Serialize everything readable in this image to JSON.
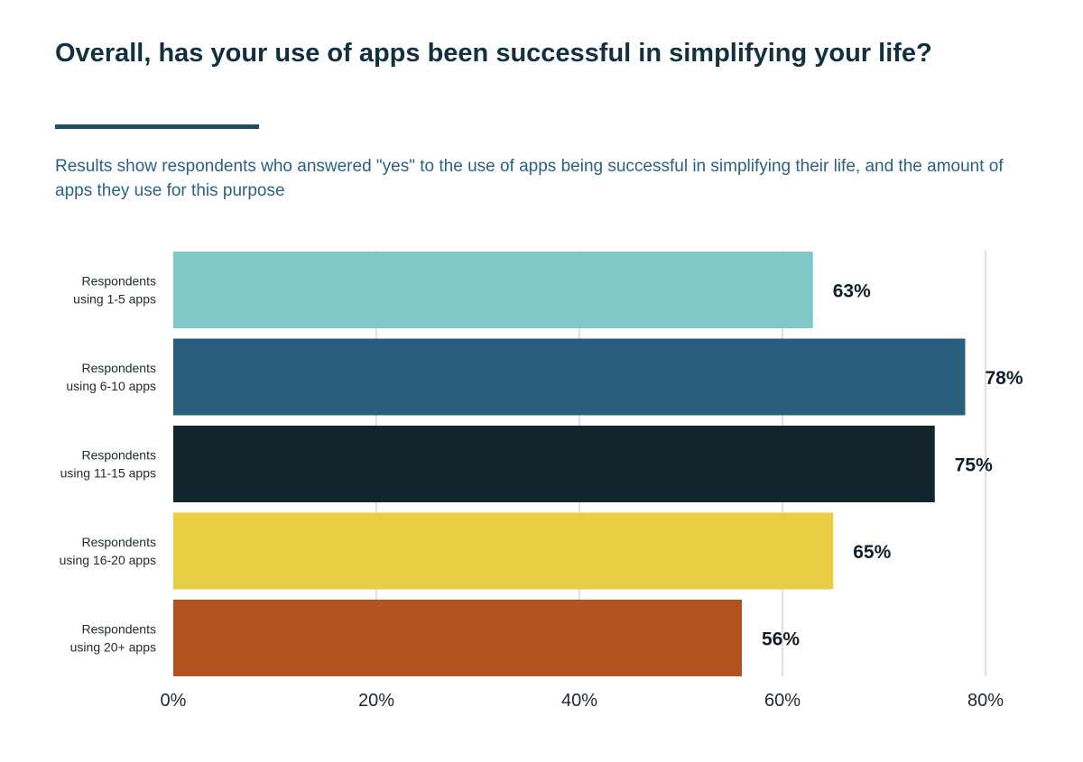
{
  "header": {
    "title": "Overall, has your use of apps been successful in simplifying your life?",
    "subtitle": "Results show respondents who answered \"yes\" to the use of apps being successful in simplifying their life, and the amount of apps they use for this purpose"
  },
  "colors": {
    "title": "#12303f",
    "divider": "#1f4e6b",
    "subtitle": "#2b6282",
    "grid": "#d6d6d6"
  },
  "chart_data": {
    "type": "bar",
    "orientation": "horizontal",
    "title": "Overall, has your use of apps been successful in simplifying your life?",
    "subtitle": "Results show respondents who answered \"yes\" to the use of apps being successful in simplifying their life, and the amount of apps they use for this purpose",
    "categories": [
      [
        "Respondents",
        "using 1-5 apps"
      ],
      [
        "Respondents",
        "using 6-10 apps"
      ],
      [
        "Respondents",
        "using 11-15 apps"
      ],
      [
        "Respondents",
        "using 16-20 apps"
      ],
      [
        "Respondents",
        "using 20+ apps"
      ]
    ],
    "values": [
      63,
      78,
      75,
      65,
      56
    ],
    "data_labels": [
      "63%",
      "78%",
      "75%",
      "65%",
      "56%"
    ],
    "bar_colors": [
      "#7ec9c8",
      "#295e7c",
      "#13252d",
      "#e9cd45",
      "#b1531f"
    ],
    "xlim": [
      0,
      80
    ],
    "xticks": [
      0,
      20,
      40,
      60,
      80
    ],
    "xtick_labels": [
      "0%",
      "20%",
      "40%",
      "60%",
      "80%"
    ],
    "xlabel": "",
    "ylabel": "",
    "grid": "vertical",
    "legend": "none"
  }
}
